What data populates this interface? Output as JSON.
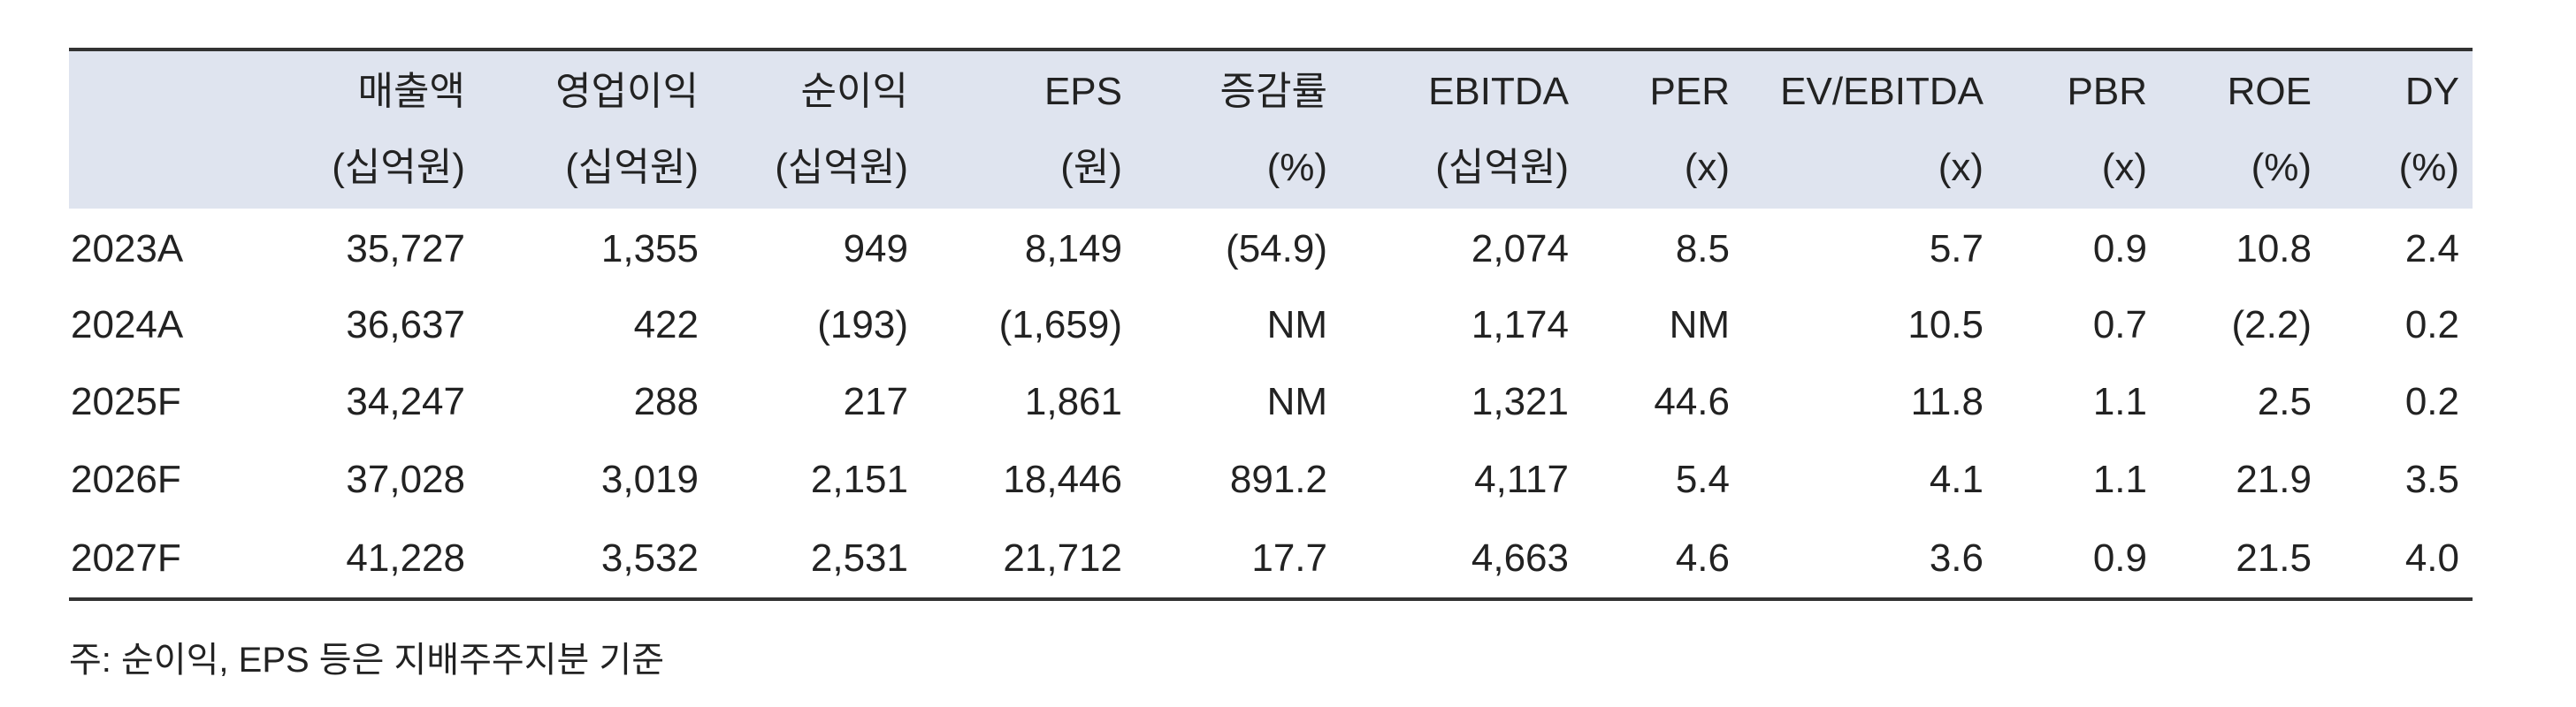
{
  "table": {
    "columns": [
      {
        "name": "매출액",
        "unit": "(십억원)"
      },
      {
        "name": "영업이익",
        "unit": "(십억원)"
      },
      {
        "name": "순이익",
        "unit": "(십억원)"
      },
      {
        "name": "EPS",
        "unit": "(원)"
      },
      {
        "name": "증감률",
        "unit": "(%)"
      },
      {
        "name": "EBITDA",
        "unit": "(십억원)"
      },
      {
        "name": "PER",
        "unit": "(x)"
      },
      {
        "name": "EV/EBITDA",
        "unit": "(x)"
      },
      {
        "name": "PBR",
        "unit": "(x)"
      },
      {
        "name": "ROE",
        "unit": "(%)"
      },
      {
        "name": "DY",
        "unit": "(%)"
      }
    ],
    "rows": [
      [
        "2023A",
        "35,727",
        "1,355",
        "949",
        "8,149",
        "(54.9)",
        "2,074",
        "8.5",
        "5.7",
        "0.9",
        "10.8",
        "2.4"
      ],
      [
        "2024A",
        "36,637",
        "422",
        "(193)",
        "(1,659)",
        "NM",
        "1,174",
        "NM",
        "10.5",
        "0.7",
        "(2.2)",
        "0.2"
      ],
      [
        "2025F",
        "34,247",
        "288",
        "217",
        "1,861",
        "NM",
        "1,321",
        "44.6",
        "11.8",
        "1.1",
        "2.5",
        "0.2"
      ],
      [
        "2026F",
        "37,028",
        "3,019",
        "2,151",
        "18,446",
        "891.2",
        "4,117",
        "5.4",
        "4.1",
        "1.1",
        "21.9",
        "3.5"
      ],
      [
        "2027F",
        "41,228",
        "3,532",
        "2,531",
        "21,712",
        "17.7",
        "4,663",
        "4.6",
        "3.6",
        "0.9",
        "21.5",
        "4.0"
      ]
    ]
  },
  "footnote": "주: 순이익, EPS 등은 지배주주지분 기준"
}
